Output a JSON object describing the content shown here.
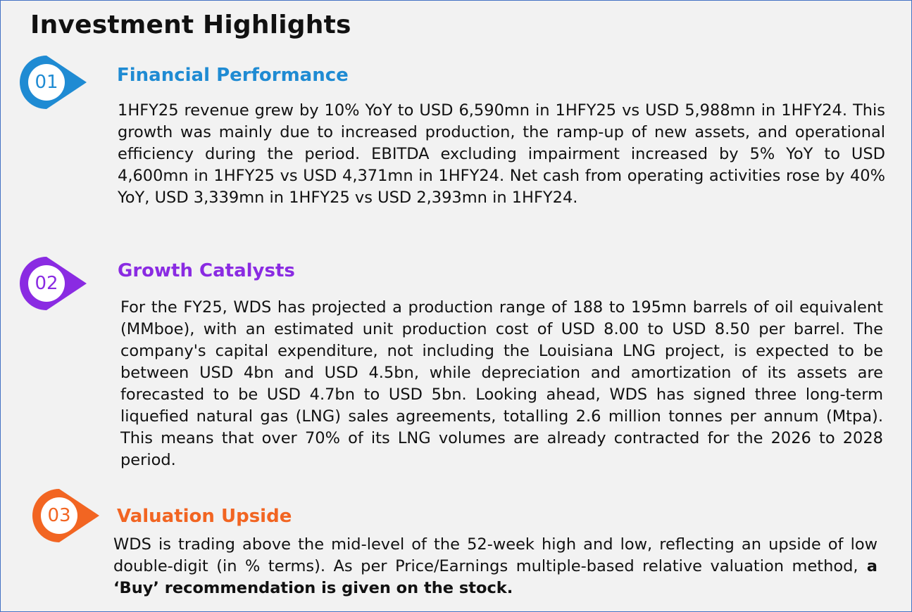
{
  "page": {
    "title": "Investment Highlights"
  },
  "sections": [
    {
      "number": "01",
      "heading": "Financial Performance",
      "color": "#1f8bd3",
      "body": "1HFY25 revenue grew by 10% YoY to USD 6,590mn in 1HFY25 vs USD 5,988mn in 1HFY24. This growth was mainly due to increased production, the ramp-up of new assets, and operational efficiency during the period.  EBITDA excluding impairment increased by 5% YoY to USD 4,600mn in 1HFY25 vs USD 4,371mn in 1HFY24. Net cash from operating activities rose by 40% YoY, USD 3,339mn in 1HFY25 vs USD 2,393mn in 1HFY24."
    },
    {
      "number": "02",
      "heading": "Growth Catalysts",
      "color": "#8a2be2",
      "body": "For the FY25, WDS has projected a production range of 188 to 195mn barrels of oil equivalent (MMboe), with an estimated unit production cost of USD 8.00 to USD 8.50 per barrel. The company's capital expenditure, not including the Louisiana LNG project, is expected to be between USD 4bn and USD 4.5bn, while depreciation and amortization of its assets are forecasted to be USD 4.7bn to USD 5bn. Looking ahead, WDS has signed three long-term liquefied natural gas (LNG) sales agreements, totalling 2.6 million tonnes per annum (Mtpa). This means that over 70% of its LNG volumes are already contracted for the 2026 to 2028 period."
    },
    {
      "number": "03",
      "heading": "Valuation Upside",
      "color": "#f26522",
      "body": "WDS is trading above the mid-level of the 52-week high and low, reflecting an upside of low double-digit (in % terms). As per Price/Earnings multiple-based relative valuation method,",
      "body_bold": " a ‘Buy’ recommendation is given on the stock."
    }
  ]
}
